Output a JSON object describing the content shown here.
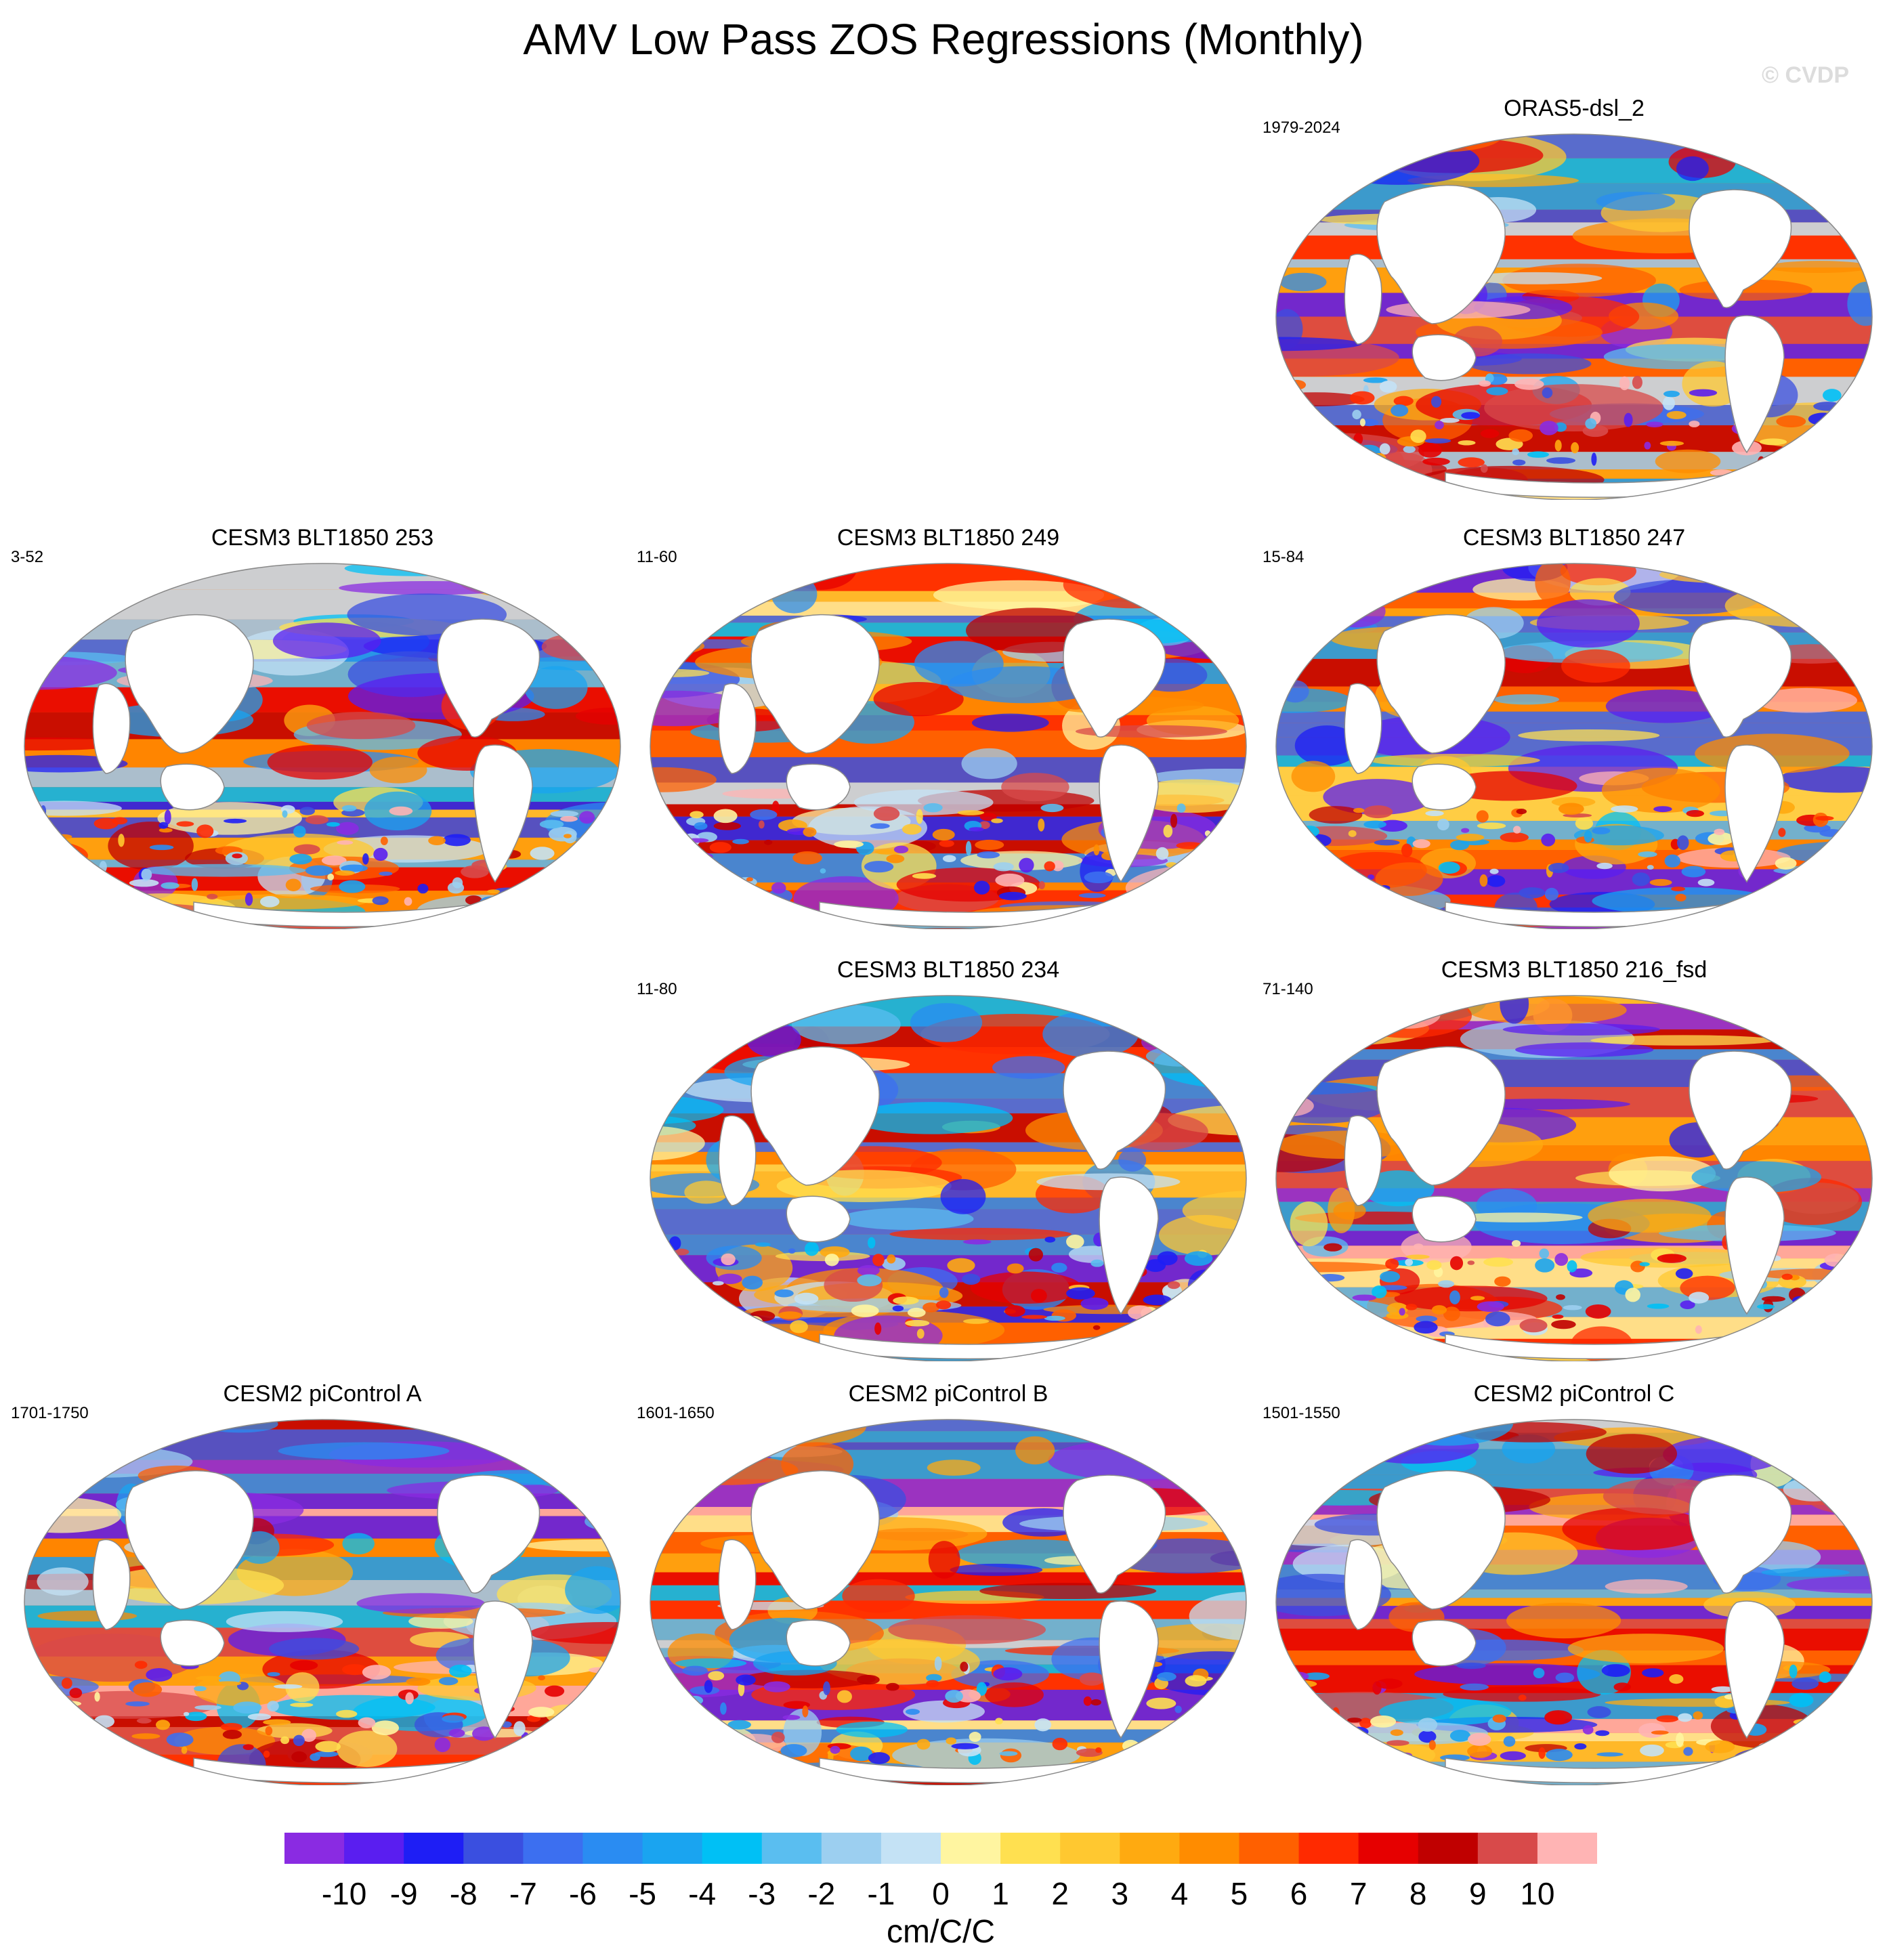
{
  "title": "AMV Low Pass ZOS Regressions (Monthly)",
  "watermark": "© CVDP",
  "chart_data": {
    "type": "heatmap",
    "projection": "Robinson (global map panels)",
    "variable": "ZOS",
    "panels": [
      {
        "id": "orasd",
        "title": "ORAS5-dsl_2",
        "years": "1979-2024",
        "row": 0,
        "col": 2
      },
      {
        "id": "b253",
        "title": "CESM3 BLT1850 253",
        "years": "3-52",
        "row": 1,
        "col": 0
      },
      {
        "id": "b249",
        "title": "CESM3 BLT1850 249",
        "years": "11-60",
        "row": 1,
        "col": 1
      },
      {
        "id": "b247",
        "title": "CESM3 BLT1850 247",
        "years": "15-84",
        "row": 1,
        "col": 2
      },
      {
        "id": "b234",
        "title": "CESM3 BLT1850 234",
        "years": "11-80",
        "row": 2,
        "col": 1
      },
      {
        "id": "b216",
        "title": "CESM3 BLT1850 216_fsd",
        "years": "71-140",
        "row": 2,
        "col": 2
      },
      {
        "id": "pcA",
        "title": "CESM2 piControl A",
        "years": "1701-1750",
        "row": 3,
        "col": 0
      },
      {
        "id": "pcB",
        "title": "CESM2 piControl B",
        "years": "1601-1650",
        "row": 3,
        "col": 1
      },
      {
        "id": "pcC",
        "title": "CESM2 piControl C",
        "years": "1501-1550",
        "row": 3,
        "col": 2
      }
    ],
    "colorbar": {
      "units": "cm/C/C",
      "levels": [
        -10,
        -9,
        -8,
        -7,
        -6,
        -5,
        -4,
        -3,
        -2,
        -1,
        0,
        1,
        2,
        3,
        4,
        5,
        6,
        7,
        8,
        9,
        10
      ],
      "labels": [
        "-10",
        "-9",
        "-8",
        "-7",
        "-6",
        "-5",
        "-4",
        "-3",
        "-2",
        "-1",
        "0",
        "1",
        "2",
        "3",
        "4",
        "5",
        "6",
        "7",
        "8",
        "9",
        "10"
      ],
      "colors": [
        "#8a2be2",
        "#5a1ef0",
        "#1e1ef5",
        "#3a4fe0",
        "#3c6ff0",
        "#2a8cf2",
        "#1aa4f0",
        "#00c0f5",
        "#5abef0",
        "#9ccff0",
        "#c4e2f5",
        "#fff5a0",
        "#ffe050",
        "#ffc830",
        "#ffaa10",
        "#ff8c00",
        "#ff6000",
        "#ff2a00",
        "#e60000",
        "#c00000",
        "#d84a4a",
        "#ffb4b4"
      ]
    }
  }
}
